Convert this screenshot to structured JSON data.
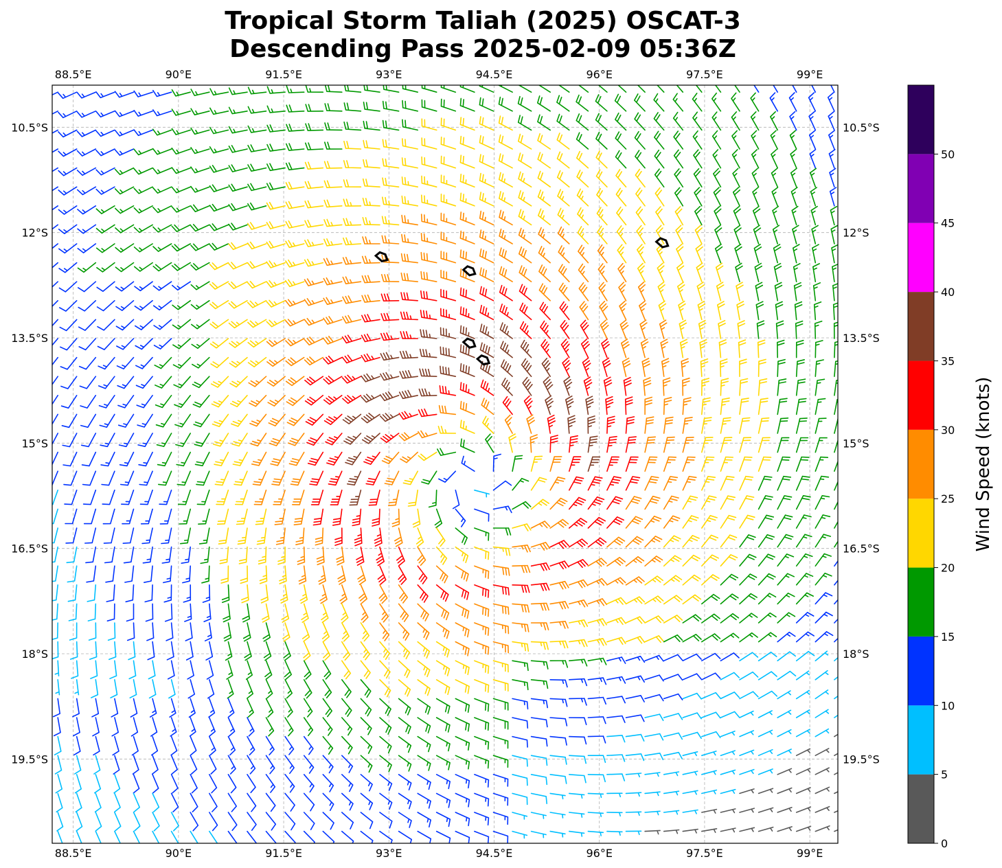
{
  "chart_data": {
    "type": "wind_barb_map",
    "title_line1": "Tropical Storm Taliah (2025) OSCAT-3",
    "title_line2": "Descending Pass 2025-02-09 05:36Z",
    "xlim": [
      88.2,
      99.4
    ],
    "ylim": [
      -20.7,
      -9.9
    ],
    "x_ticks": [
      {
        "value": 88.5,
        "label": "88.5°E"
      },
      {
        "value": 90.0,
        "label": "90°E"
      },
      {
        "value": 91.5,
        "label": "91.5°E"
      },
      {
        "value": 93.0,
        "label": "93°E"
      },
      {
        "value": 94.5,
        "label": "94.5°E"
      },
      {
        "value": 96.0,
        "label": "96°E"
      },
      {
        "value": 97.5,
        "label": "97.5°E"
      },
      {
        "value": 99.0,
        "label": "99°E"
      }
    ],
    "y_ticks": [
      {
        "value": -10.5,
        "label": "10.5°S"
      },
      {
        "value": -12.0,
        "label": "12°S"
      },
      {
        "value": -13.5,
        "label": "13.5°S"
      },
      {
        "value": -15.0,
        "label": "15°S"
      },
      {
        "value": -16.5,
        "label": "16.5°S"
      },
      {
        "value": -18.0,
        "label": "18°S"
      },
      {
        "value": -19.5,
        "label": "19.5°S"
      }
    ],
    "grid": true,
    "storm_center": {
      "lon": 94.2,
      "lat": -15.5
    },
    "approx_max_wind_kt": 38,
    "colorbar": {
      "label": "Wind Speed (knots)",
      "tick_labels": [
        "0",
        "5",
        "10",
        "15",
        "20",
        "25",
        "30",
        "35",
        "40",
        "45",
        "50"
      ],
      "bins": [
        {
          "min": 0,
          "max": 5,
          "color": "#595959"
        },
        {
          "min": 5,
          "max": 10,
          "color": "#00bfff"
        },
        {
          "min": 10,
          "max": 15,
          "color": "#0033ff"
        },
        {
          "min": 15,
          "max": 20,
          "color": "#009900"
        },
        {
          "min": 20,
          "max": 25,
          "color": "#ffd700"
        },
        {
          "min": 25,
          "max": 30,
          "color": "#ff8c00"
        },
        {
          "min": 30,
          "max": 35,
          "color": "#ff0000"
        },
        {
          "min": 35,
          "max": 40,
          "color": "#803d26"
        },
        {
          "min": 40,
          "max": 45,
          "color": "#ff00ff"
        },
        {
          "min": 45,
          "max": 50,
          "color": "#8000b3"
        },
        {
          "min": 50,
          "max": 55,
          "color": "#2e005c"
        }
      ]
    },
    "rain_flag_contours": [
      {
        "lon": 92.9,
        "lat": -12.35
      },
      {
        "lon": 94.15,
        "lat": -12.55
      },
      {
        "lon": 94.15,
        "lat": -13.58
      },
      {
        "lon": 94.35,
        "lat": -13.82
      },
      {
        "lon": 96.9,
        "lat": -12.15
      }
    ]
  }
}
